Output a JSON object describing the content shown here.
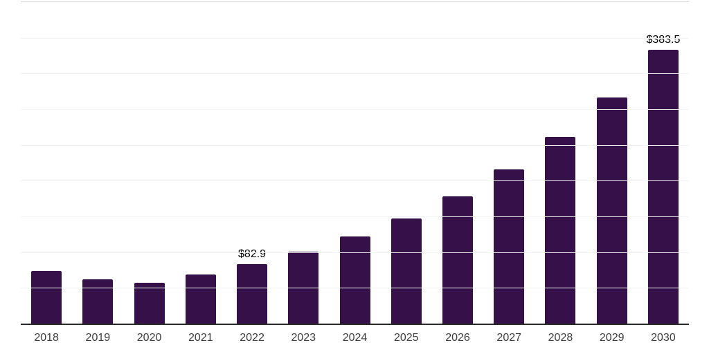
{
  "chart_data": {
    "type": "bar",
    "title": "",
    "xlabel": "",
    "ylabel": "",
    "categories": [
      "2018",
      "2019",
      "2020",
      "2021",
      "2022",
      "2023",
      "2024",
      "2025",
      "2026",
      "2027",
      "2028",
      "2029",
      "2030"
    ],
    "values": [
      73.1,
      61.5,
      56.8,
      68.3,
      82.9,
      100.4,
      121.6,
      147.2,
      178.3,
      215.9,
      261.5,
      316.7,
      383.5
    ],
    "data_labels": [
      "",
      "",
      "",
      "",
      "$82.9",
      "",
      "",
      "",
      "",
      "",
      "",
      "",
      "$383.5"
    ],
    "ylim": [
      0,
      450
    ],
    "gridline_step": 50,
    "grid": true,
    "legend": false,
    "colors": {
      "bar": "#361048",
      "axis": "#2b2b2b",
      "gridline": "#f2f2f2",
      "top_border": "#dcdcdc",
      "tick_label": "#3c3c3c",
      "data_label": "#000000"
    }
  }
}
